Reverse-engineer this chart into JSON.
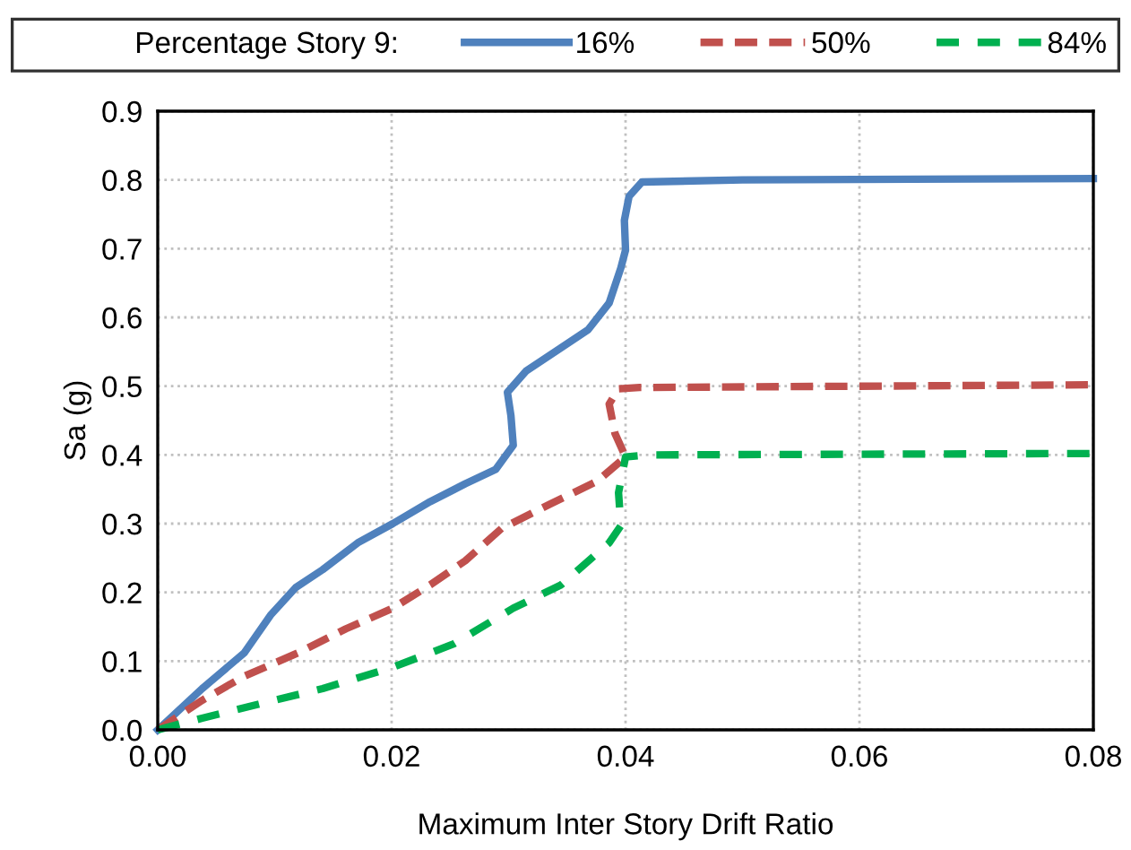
{
  "chart_data": {
    "type": "line",
    "xlabel": "Maximum Inter Story Drift Ratio",
    "ylabel": "Sa (g)",
    "legend_title": "Percentage Story 9:",
    "legend": "top",
    "grid": true,
    "marker": "none",
    "xlim": [
      0,
      0.08
    ],
    "xticks": [
      {
        "value": 0,
        "label": "0.00"
      },
      0.02,
      0.04,
      0.06,
      0.08
    ],
    "ylim": [
      0,
      0.9
    ],
    "yticks": [
      {
        "value": 0,
        "label": "0.0"
      },
      0.1,
      0.2,
      0.3,
      0.4,
      0.5,
      0.6,
      0.7,
      0.8,
      0.9
    ],
    "series": [
      {
        "name": "16%",
        "color": "#4f81bd",
        "line_style": "solid",
        "x": [
          0,
          0.0038,
          0.0074,
          0.0097,
          0.0118,
          0.0141,
          0.0171,
          0.0201,
          0.0233,
          0.0263,
          0.0289,
          0.0304,
          0.0302,
          0.0299,
          0.0315,
          0.0345,
          0.0368,
          0.0386,
          0.0396,
          0.04,
          0.0399,
          0.0403,
          0.0414,
          0.05,
          0.08
        ],
        "values": [
          0,
          0.06,
          0.112,
          0.168,
          0.207,
          0.233,
          0.272,
          0.3,
          0.332,
          0.358,
          0.379,
          0.414,
          0.457,
          0.491,
          0.522,
          0.556,
          0.582,
          0.621,
          0.672,
          0.698,
          0.741,
          0.776,
          0.797,
          0.8,
          0.802
        ]
      },
      {
        "name": "50%",
        "color": "#c0504d",
        "line_style": "dashed",
        "x": [
          0,
          0.0038,
          0.0074,
          0.012,
          0.0161,
          0.0201,
          0.0233,
          0.0263,
          0.0294,
          0.0335,
          0.0376,
          0.04,
          0.0391,
          0.0386,
          0.0394,
          0.0412,
          0.08
        ],
        "values": [
          0,
          0.043,
          0.078,
          0.112,
          0.147,
          0.177,
          0.211,
          0.246,
          0.293,
          0.328,
          0.362,
          0.397,
          0.431,
          0.474,
          0.496,
          0.498,
          0.502
        ]
      },
      {
        "name": "84%",
        "color": "#00b050",
        "line_style": "dashed",
        "x": [
          0,
          0.0038,
          0.009,
          0.0141,
          0.0201,
          0.0253,
          0.0304,
          0.0345,
          0.0386,
          0.0396,
          0.0394,
          0.04,
          0.042,
          0.08
        ],
        "values": [
          0,
          0.017,
          0.039,
          0.06,
          0.091,
          0.125,
          0.177,
          0.211,
          0.272,
          0.297,
          0.345,
          0.397,
          0.4,
          0.402
        ]
      }
    ]
  }
}
